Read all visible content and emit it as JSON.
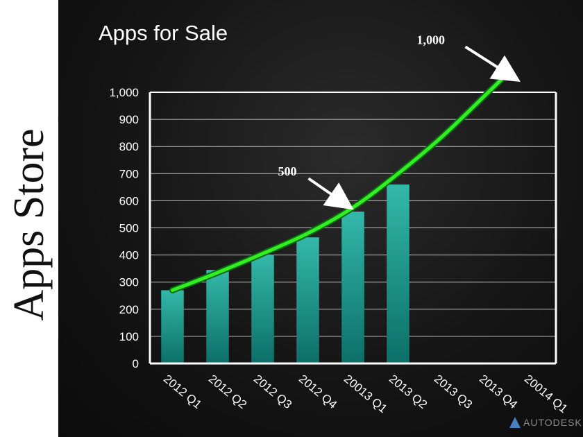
{
  "side_title": "Apps Store",
  "slide_title": "Apps for Sale",
  "logo": {
    "text": "AUTODESK"
  },
  "colors": {
    "bar": "#2aa79a",
    "bar_dark": "#0c6f68",
    "trend": "#33ee22",
    "trend_glow": "#0a6a12",
    "grid": "#bfbfbf",
    "text": "#ffffff"
  },
  "chart_data": {
    "type": "bar",
    "categories": [
      "2012 Q1",
      "2012 Q2",
      "2012 Q3",
      "2012 Q4",
      "20013 Q1",
      "2013 Q2",
      "2013 Q3",
      "2013 Q4",
      "20014 Q1"
    ],
    "values": [
      270,
      345,
      400,
      465,
      560,
      660,
      null,
      null,
      null
    ],
    "trend_line": [
      270,
      335,
      405,
      480,
      575,
      700,
      840,
      1000,
      null
    ],
    "ylim": [
      0,
      1000
    ],
    "y_ticks": [
      "0",
      "100",
      "200",
      "300",
      "400",
      "500",
      "600",
      "700",
      "800",
      "900",
      "1,000"
    ],
    "grid": true,
    "annotations": [
      {
        "text": "500",
        "target_category": "20013 Q1",
        "target_value": 580
      },
      {
        "text": "1,000",
        "target_category": "20014 Q1",
        "target_value": 1050
      }
    ]
  }
}
